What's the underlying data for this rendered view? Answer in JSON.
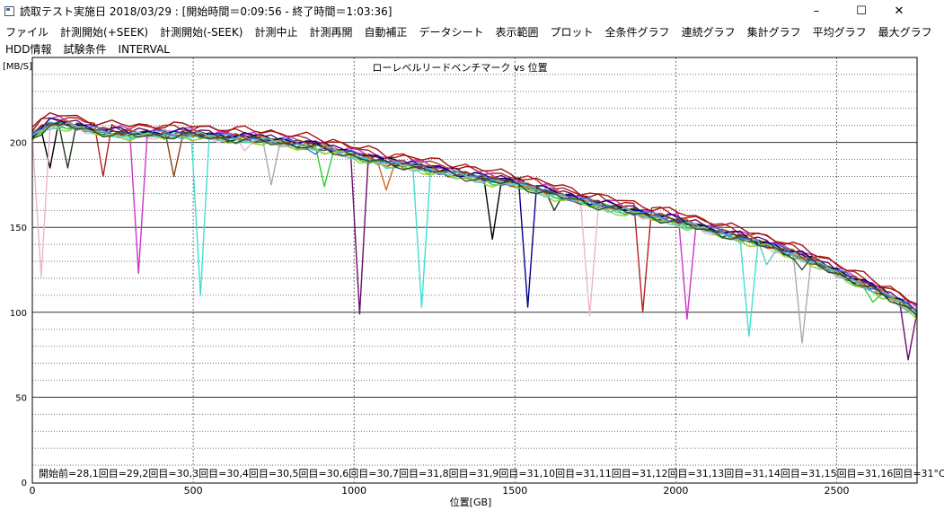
{
  "window": {
    "title": "読取テスト実施日 2018/03/29 : [開始時間＝0:09:56 - 終了時間＝1:03:36]",
    "minimize": "–",
    "maximize": "☐",
    "close": "✕"
  },
  "menu": {
    "row1": [
      "ファイル",
      "計測開始(+SEEK)",
      "計測開始(-SEEK)",
      "計測中止",
      "計測再開",
      "自動補正",
      "データシート",
      "表示範囲",
      "プロット",
      "全条件グラフ",
      "連続グラフ",
      "集計グラフ",
      "平均グラフ",
      "最大グラフ"
    ],
    "row2": [
      "HDD情報",
      "試験条件",
      "INTERVAL"
    ]
  },
  "chart_data": {
    "type": "line",
    "title": "ローレベルリードベンチマーク vs 位置",
    "xlabel": "位置[GB]",
    "ylabel": "[MB/S]",
    "xlim": [
      0,
      2750
    ],
    "ylim": [
      0,
      250
    ],
    "x_ticks": [
      0,
      500,
      1000,
      1500,
      2000,
      2500
    ],
    "y_ticks": [
      0,
      50,
      100,
      150,
      200
    ],
    "grid": true,
    "legend_text": "開始前=28,1回目=29,2回目=30,3回目=30,4回目=30,5回目=30,6回目=30,7回目=31,8回目=31,9回目=31,10回目=31,11回目=31,12回目=31,13回目=31,14回目=31,15回目=31,16回目=31°C",
    "base_curve": {
      "x": [
        0,
        50,
        100,
        200,
        300,
        400,
        500,
        600,
        700,
        800,
        900,
        1000,
        1100,
        1200,
        1300,
        1400,
        1500,
        1600,
        1700,
        1800,
        1900,
        2000,
        2100,
        2200,
        2300,
        2400,
        2500,
        2600,
        2700,
        2750
      ],
      "values": [
        205,
        212,
        212,
        208,
        206,
        206,
        206,
        204,
        203,
        201,
        198,
        194,
        189,
        187,
        183,
        180,
        177,
        172,
        167,
        163,
        159,
        155,
        150,
        145,
        140,
        133,
        125,
        116,
        107,
        101
      ]
    },
    "series": [
      {
        "color": "#b22222",
        "offset": 3,
        "dips": [
          [
            230,
            180
          ],
          [
            1900,
            100
          ]
        ]
      },
      {
        "color": "#000000",
        "offset": 0,
        "dips": [
          [
            60,
            185
          ],
          [
            1440,
            143
          ]
        ]
      },
      {
        "color": "#1e3a1e",
        "offset": -1,
        "dips": [
          [
            110,
            185
          ],
          [
            1620,
            160
          ]
        ]
      },
      {
        "color": "#e8b8c8",
        "offset": -2,
        "dips": [
          [
            30,
            121
          ],
          [
            1720,
            98
          ],
          [
            660,
            195
          ]
        ]
      },
      {
        "color": "#cc33cc",
        "offset": 1,
        "dips": [
          [
            330,
            123
          ],
          [
            2030,
            96
          ]
        ]
      },
      {
        "color": "#40e0d0",
        "offset": -2,
        "dips": [
          [
            530,
            110
          ],
          [
            1220,
            103
          ],
          [
            2230,
            86
          ]
        ]
      },
      {
        "color": "#aaaaaa",
        "offset": -1,
        "dips": [
          [
            730,
            175
          ],
          [
            2400,
            82
          ]
        ]
      },
      {
        "color": "#32cd32",
        "offset": -2,
        "dips": [
          [
            920,
            174
          ],
          [
            2620,
            106
          ]
        ]
      },
      {
        "color": "#6a0d6a",
        "offset": 0,
        "dips": [
          [
            1030,
            99
          ],
          [
            2730,
            72
          ]
        ]
      },
      {
        "color": "#d2691e",
        "offset": -1,
        "dips": [
          [
            1110,
            172
          ]
        ]
      },
      {
        "color": "#00008b",
        "offset": 0,
        "dips": [
          [
            1530,
            103
          ]
        ]
      },
      {
        "color": "#8b4513",
        "offset": -1,
        "dips": [
          [
            430,
            180
          ]
        ]
      },
      {
        "color": "#4169e1",
        "offset": -1,
        "dips": [
          [
            880,
            193
          ]
        ]
      },
      {
        "color": "#9acd32",
        "offset": -3,
        "dips": [
          [
            1800,
            160
          ]
        ]
      },
      {
        "color": "#5ac8c8",
        "offset": -2,
        "dips": [
          [
            2290,
            128
          ]
        ]
      },
      {
        "color": "#2f4f2f",
        "offset": -2,
        "dips": [
          [
            2390,
            125
          ]
        ]
      },
      {
        "color": "#a01010",
        "offset": 4,
        "dips": []
      }
    ]
  }
}
